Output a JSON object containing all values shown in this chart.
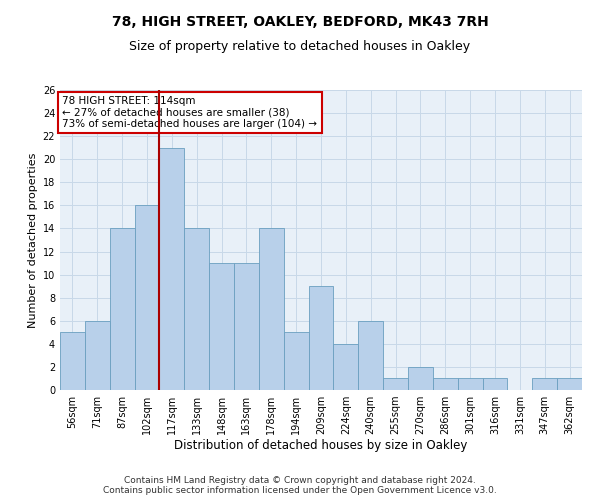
{
  "title1": "78, HIGH STREET, OAKLEY, BEDFORD, MK43 7RH",
  "title2": "Size of property relative to detached houses in Oakley",
  "xlabel": "Distribution of detached houses by size in Oakley",
  "ylabel": "Number of detached properties",
  "categories": [
    "56sqm",
    "71sqm",
    "87sqm",
    "102sqm",
    "117sqm",
    "133sqm",
    "148sqm",
    "163sqm",
    "178sqm",
    "194sqm",
    "209sqm",
    "224sqm",
    "240sqm",
    "255sqm",
    "270sqm",
    "286sqm",
    "301sqm",
    "316sqm",
    "331sqm",
    "347sqm",
    "362sqm"
  ],
  "values": [
    5,
    6,
    14,
    16,
    21,
    14,
    11,
    11,
    14,
    5,
    9,
    4,
    6,
    1,
    2,
    1,
    1,
    1,
    0,
    1,
    1
  ],
  "bar_color": "#b8d0ea",
  "bar_edge_color": "#6a9fc0",
  "vline_x": 4.0,
  "vline_color": "#aa0000",
  "annotation_line1": "78 HIGH STREET: 114sqm",
  "annotation_line2": "← 27% of detached houses are smaller (38)",
  "annotation_line3": "73% of semi-detached houses are larger (104) →",
  "annotation_box_color": "#ffffff",
  "annotation_box_edge": "#cc0000",
  "ylim": [
    0,
    26
  ],
  "yticks": [
    0,
    2,
    4,
    6,
    8,
    10,
    12,
    14,
    16,
    18,
    20,
    22,
    24,
    26
  ],
  "grid_color": "#c8d8e8",
  "background_color": "#e8f0f8",
  "footer": "Contains HM Land Registry data © Crown copyright and database right 2024.\nContains public sector information licensed under the Open Government Licence v3.0.",
  "title1_fontsize": 10,
  "title2_fontsize": 9,
  "xlabel_fontsize": 8.5,
  "ylabel_fontsize": 8,
  "tick_fontsize": 7,
  "annotation_fontsize": 7.5,
  "footer_fontsize": 6.5
}
